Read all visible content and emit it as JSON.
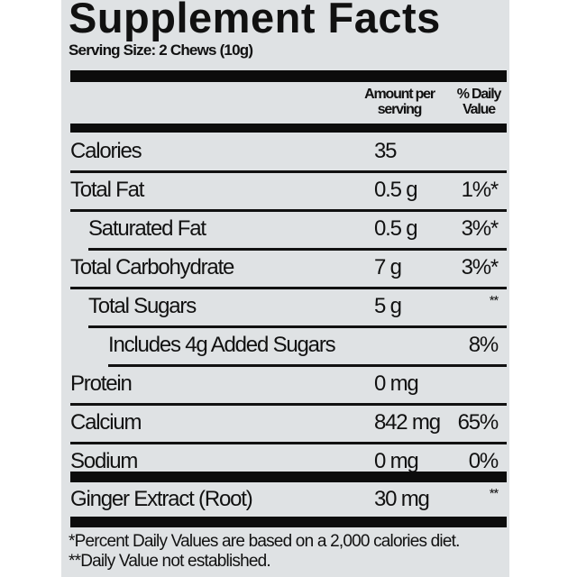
{
  "title": "Supplement Facts",
  "serving_size": "Serving Size: 2 Chews (10g)",
  "header": {
    "amount_line1": "Amount per",
    "amount_line2": "serving",
    "dv_line1": "% Daily",
    "dv_line2": "Value"
  },
  "rows": [
    {
      "name": "Calories",
      "amount": "35",
      "dv": "",
      "indent": 0
    },
    {
      "name": "Total Fat",
      "amount": "0.5 g",
      "dv": "1%*",
      "indent": 0
    },
    {
      "name": "Saturated Fat",
      "amount": "0.5 g",
      "dv": "3%*",
      "indent": 1
    },
    {
      "name": "Total Carbohydrate",
      "amount": "7 g",
      "dv": "3%*",
      "indent": 0
    },
    {
      "name": "Total Sugars",
      "amount": "5 g",
      "dv": "**",
      "indent": 1
    },
    {
      "name": "Includes 4g Added Sugars",
      "amount": "",
      "dv": "8%",
      "indent": 2
    },
    {
      "name": "Protein",
      "amount": "0 mg",
      "dv": "",
      "indent": 0
    },
    {
      "name": "Calcium",
      "amount": "842 mg",
      "dv": "65%",
      "indent": 0
    },
    {
      "name": "Sodium",
      "amount": "0 mg",
      "dv": "0%",
      "indent": 0
    }
  ],
  "other": {
    "name": "Ginger Extract (Root)",
    "amount": "30 mg",
    "dv": "**"
  },
  "footnotes": [
    "*Percent Daily Values are based on a 2,000 calories diet.",
    "**Daily Value not established."
  ]
}
